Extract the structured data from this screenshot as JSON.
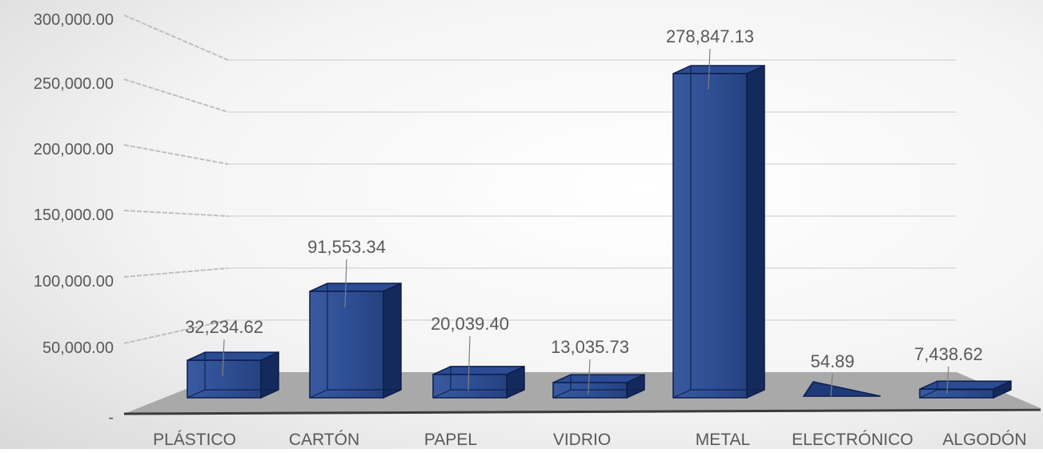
{
  "chart_data": {
    "type": "bar",
    "categories": [
      "PLÁSTICO",
      "CARTÓN",
      "PAPEL",
      "VIDRIO",
      "METAL",
      "ELECTRÓNICO",
      "ALGODÓN"
    ],
    "values": [
      32234.62,
      91553.34,
      20039.4,
      13035.73,
      278847.13,
      54.89,
      7438.62
    ],
    "data_labels": [
      "32,234.62",
      "91,553.34",
      "20,039.40",
      "13,035.73",
      "278,847.13",
      "54.89",
      "7,438.62"
    ],
    "y_ticks": [
      0,
      50000,
      100000,
      150000,
      200000,
      250000,
      300000
    ],
    "y_tick_labels": [
      "-",
      "50,000.00",
      "100,000.00",
      "150,000.00",
      "200,000.00",
      "250,000.00",
      "300,000.00"
    ],
    "ylim": [
      0,
      300000
    ],
    "title": "",
    "xlabel": "",
    "ylabel": "",
    "grid": true,
    "style": "3d-column",
    "colors": {
      "bar_front": "#1f3a7a",
      "bar_side": "#152a5c",
      "bar_top": "#2b4b93",
      "bar_edge": "#0c1d4a",
      "floor": "#a9a9a9",
      "grid": "#d4d4d4",
      "text": "#595959"
    }
  }
}
